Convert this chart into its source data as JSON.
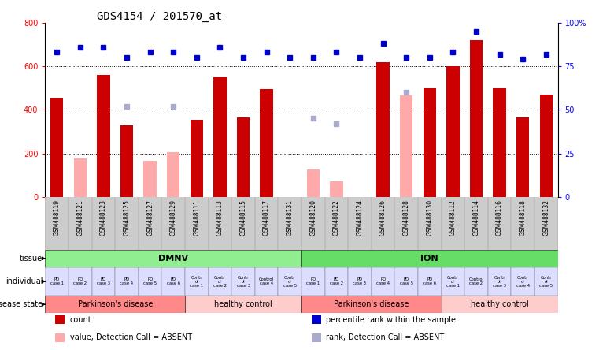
{
  "title": "GDS4154 / 201570_at",
  "samples": [
    "GSM488119",
    "GSM488121",
    "GSM488123",
    "GSM488125",
    "GSM488127",
    "GSM488129",
    "GSM488111",
    "GSM488113",
    "GSM488115",
    "GSM488117",
    "GSM488131",
    "GSM488120",
    "GSM488122",
    "GSM488124",
    "GSM488126",
    "GSM488128",
    "GSM488130",
    "GSM488112",
    "GSM488114",
    "GSM488116",
    "GSM488118",
    "GSM488132"
  ],
  "count_values": [
    455,
    null,
    560,
    330,
    null,
    null,
    355,
    548,
    365,
    495,
    null,
    null,
    null,
    null,
    620,
    null,
    500,
    600,
    720,
    500,
    365,
    470
  ],
  "absent_values": [
    null,
    175,
    null,
    null,
    165,
    205,
    null,
    null,
    null,
    null,
    null,
    125,
    70,
    null,
    null,
    465,
    null,
    null,
    null,
    null,
    null,
    null
  ],
  "percentile_rank": [
    83,
    86,
    86,
    80,
    83,
    83,
    80,
    86,
    80,
    83,
    80,
    80,
    83,
    80,
    88,
    80,
    80,
    83,
    95,
    82,
    79,
    82
  ],
  "absent_rank": [
    null,
    null,
    null,
    52,
    null,
    52,
    null,
    null,
    null,
    null,
    null,
    45,
    42,
    null,
    null,
    60,
    null,
    null,
    null,
    null,
    null,
    null
  ],
  "bar_color": "#cc0000",
  "absent_bar_color": "#ffaaaa",
  "rank_color": "#0000cc",
  "absent_rank_color": "#aaaacc",
  "tissue_groups": [
    {
      "label": "DMNV",
      "start": 0,
      "end": 10,
      "color": "#90ee90"
    },
    {
      "label": "ION",
      "start": 11,
      "end": 21,
      "color": "#66dd66"
    }
  ],
  "disease_groups": [
    {
      "label": "Parkinson's disease",
      "start": 0,
      "end": 5,
      "color": "#ff8888"
    },
    {
      "label": "healthy control",
      "start": 6,
      "end": 10,
      "color": "#ffcccc"
    },
    {
      "label": "Parkinson's disease",
      "start": 11,
      "end": 16,
      "color": "#ff8888"
    },
    {
      "label": "healthy control",
      "start": 17,
      "end": 21,
      "color": "#ffcccc"
    }
  ],
  "indiv_labels": [
    "PD\ncase 1",
    "PD\ncase 2",
    "PD\ncase 3",
    "PD\ncase 4",
    "PD\ncase 5",
    "PD\ncase 6",
    "Contr\nol\ncase 1",
    "Contr\nol\ncase 2",
    "Contr\nol\ncase 3",
    "Control\ncase 4",
    "Contr\nol\ncase 5",
    "PD\ncase 1",
    "PD\ncase 2",
    "PD\ncase 3",
    "PD\ncase 4",
    "PD\ncase 5",
    "PD\ncase 6",
    "Contr\nol\ncase 1",
    "Control\ncase 2",
    "Contr\nol\ncase 3",
    "Contr\nol\ncase 4",
    "Contr\nol\ncase 5"
  ],
  "legend_items": [
    {
      "label": "count",
      "color": "#cc0000"
    },
    {
      "label": "percentile rank within the sample",
      "color": "#0000cc"
    },
    {
      "label": "value, Detection Call = ABSENT",
      "color": "#ffaaaa"
    },
    {
      "label": "rank, Detection Call = ABSENT",
      "color": "#aaaacc"
    }
  ],
  "xtick_bg": "#cccccc",
  "fig_bg": "#ffffff"
}
